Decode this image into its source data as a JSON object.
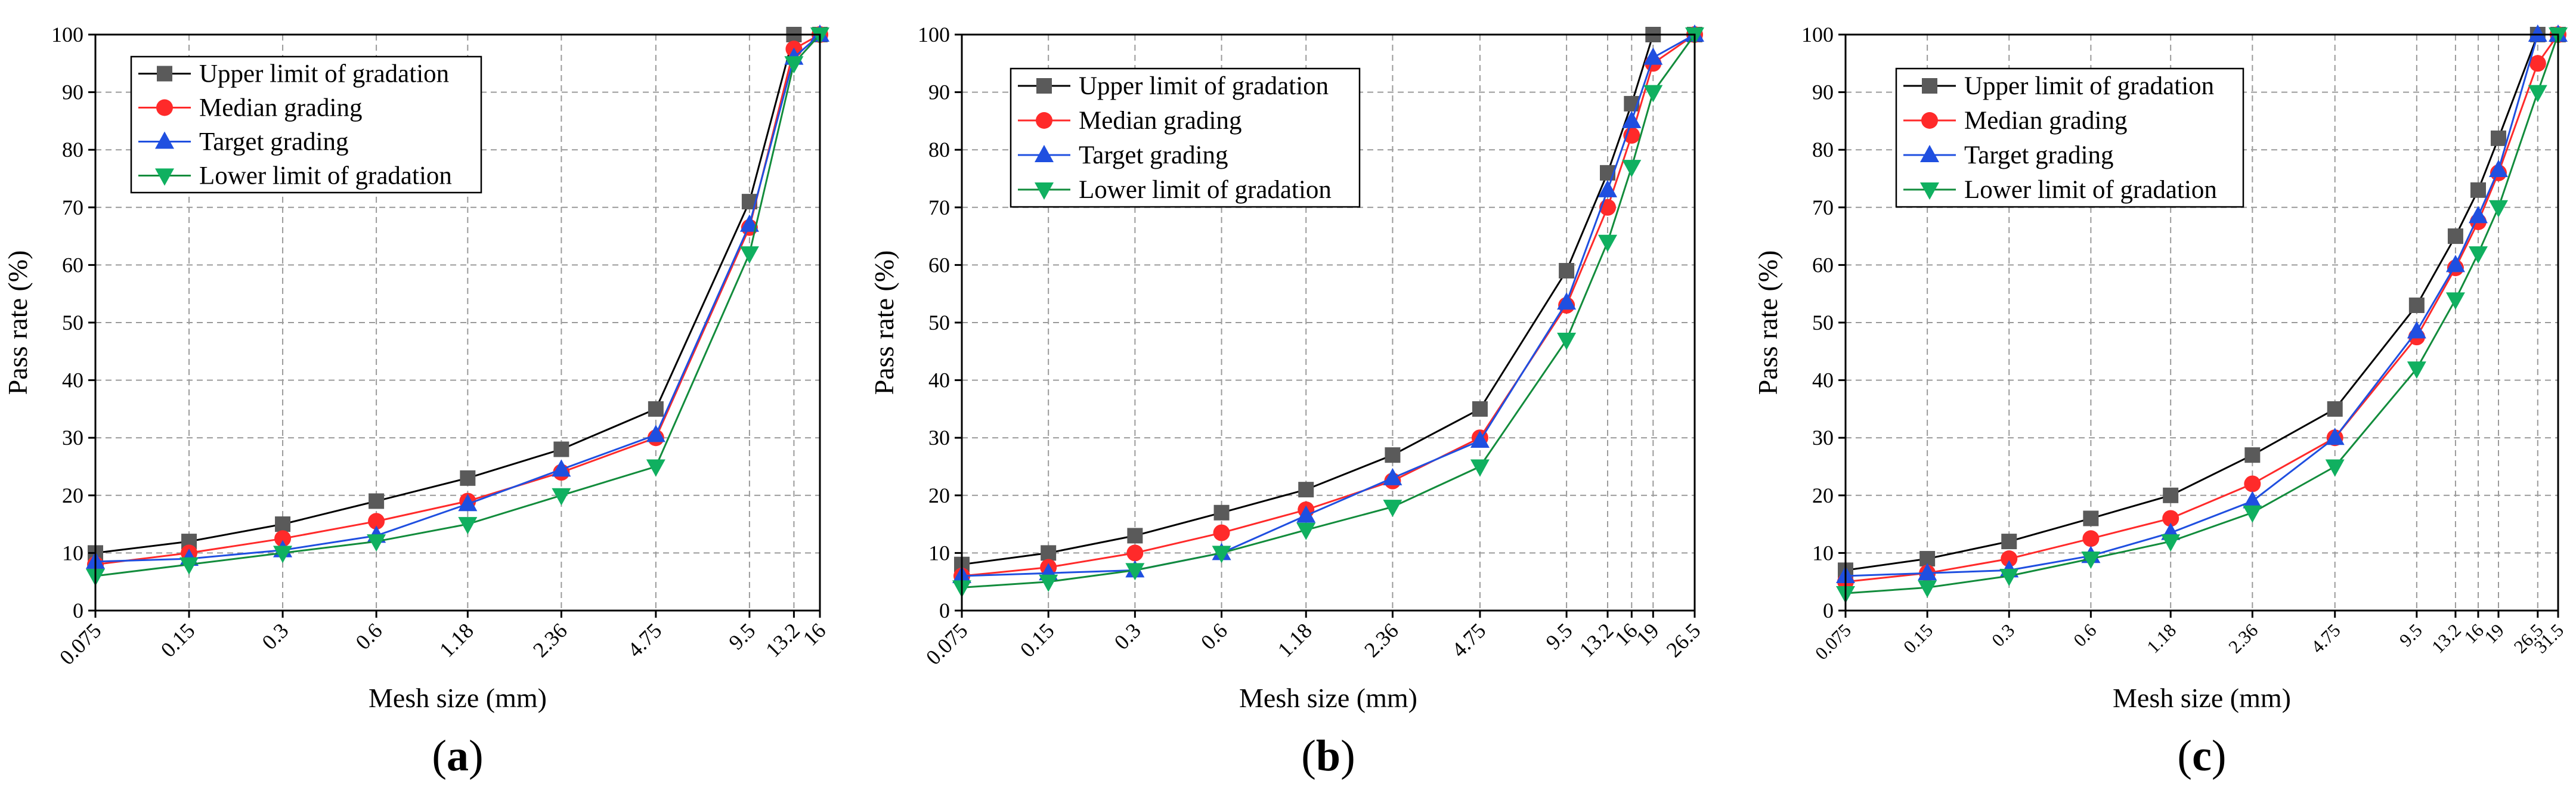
{
  "figure": {
    "panels": [
      {
        "label_open": "(",
        "label_letter": "a",
        "label_close": ")"
      },
      {
        "label_open": "(",
        "label_letter": "b",
        "label_close": ")"
      },
      {
        "label_open": "(",
        "label_letter": "c",
        "label_close": ")"
      }
    ]
  },
  "colors": {
    "upper": "#5a5a5a",
    "median": "#ff2a2a",
    "target": "#1f4fe0",
    "lower": "#10b060",
    "upper_line": "#000000",
    "median_line": "#ff2a2a",
    "target_line": "#1f4fe0",
    "lower_line": "#128c3c"
  },
  "chart_data": [
    {
      "type": "line",
      "panel": "a",
      "xlabel": "Mesh size (mm)",
      "ylabel": "Pass rate (%)",
      "ylim": [
        0,
        100
      ],
      "yticks": [
        "0",
        "10",
        "20",
        "30",
        "40",
        "50",
        "60",
        "70",
        "80",
        "90",
        "100"
      ],
      "x_scale": "log",
      "categories": [
        "0.075",
        "0.15",
        "0.3",
        "0.6",
        "1.18",
        "2.36",
        "4.75",
        "9.5",
        "13.2",
        "16"
      ],
      "series": [
        {
          "name": "Upper limit of gradation",
          "key": "upper",
          "marker": "square",
          "values": [
            10,
            12,
            15,
            19,
            23,
            28,
            35,
            71,
            100,
            100
          ]
        },
        {
          "name": "Median grading",
          "key": "median",
          "marker": "circle",
          "values": [
            8,
            10,
            12.5,
            15.5,
            19,
            24,
            30,
            66.5,
            97.5,
            100
          ]
        },
        {
          "name": "Target grading",
          "key": "target",
          "marker": "triangle-up",
          "values": [
            8.5,
            9,
            10.5,
            13,
            18.5,
            24.5,
            30.5,
            67,
            96,
            100
          ]
        },
        {
          "name": "Lower limit of gradation",
          "key": "lower",
          "marker": "triangle-down",
          "values": [
            6,
            8,
            10,
            12,
            15,
            20,
            25,
            62,
            95,
            100
          ]
        }
      ],
      "legend": "top-left",
      "grid": true
    },
    {
      "type": "line",
      "panel": "b",
      "xlabel": "Mesh size (mm)",
      "ylabel": "Pass rate (%)",
      "ylim": [
        0,
        100
      ],
      "yticks": [
        "0",
        "10",
        "20",
        "30",
        "40",
        "50",
        "60",
        "70",
        "80",
        "90",
        "100"
      ],
      "x_scale": "log",
      "categories": [
        "0.075",
        "0.15",
        "0.3",
        "0.6",
        "1.18",
        "2.36",
        "4.75",
        "9.5",
        "13.2",
        "16",
        "19",
        "26.5"
      ],
      "series": [
        {
          "name": "Upper limit of gradation",
          "key": "upper",
          "marker": "square",
          "values": [
            8,
            10,
            13,
            17,
            21,
            27,
            35,
            59,
            76,
            88,
            100,
            100
          ]
        },
        {
          "name": "Median grading",
          "key": "median",
          "marker": "circle",
          "values": [
            6,
            7.5,
            10,
            13.5,
            17.5,
            22.5,
            30,
            53,
            70,
            82.5,
            95,
            100
          ]
        },
        {
          "name": "Target grading",
          "key": "target",
          "marker": "triangle-up",
          "values": [
            6,
            6.5,
            7,
            10,
            16.5,
            23,
            29.5,
            53.5,
            73,
            85,
            96,
            100
          ]
        },
        {
          "name": "Lower limit of gradation",
          "key": "lower",
          "marker": "triangle-down",
          "values": [
            4,
            5,
            7,
            10,
            14,
            18,
            25,
            47,
            64,
            77,
            90,
            100
          ]
        }
      ],
      "legend": "top-left",
      "grid": true
    },
    {
      "type": "line",
      "panel": "c",
      "xlabel": "Mesh size (mm)",
      "ylabel": "Pass rate (%)",
      "ylim": [
        0,
        100
      ],
      "yticks": [
        "0",
        "10",
        "20",
        "30",
        "40",
        "50",
        "60",
        "70",
        "80",
        "90",
        "100"
      ],
      "x_scale": "log",
      "categories": [
        "0.075",
        "0.15",
        "0.3",
        "0.6",
        "1.18",
        "2.36",
        "4.75",
        "9.5",
        "13.2",
        "16",
        "19",
        "26.5",
        "31.5"
      ],
      "series": [
        {
          "name": "Upper limit of gradation",
          "key": "upper",
          "marker": "square",
          "values": [
            7,
            9,
            12,
            16,
            20,
            27,
            35,
            53,
            65,
            73,
            82,
            100,
            100
          ]
        },
        {
          "name": "Median grading",
          "key": "median",
          "marker": "circle",
          "values": [
            5,
            6.5,
            9,
            12.5,
            16,
            22,
            30,
            47.5,
            59.5,
            67.5,
            76,
            95,
            100
          ]
        },
        {
          "name": "Target grading",
          "key": "target",
          "marker": "triangle-up",
          "values": [
            6,
            6.5,
            7,
            9.5,
            13.5,
            19,
            30,
            48.5,
            60,
            68.5,
            76.5,
            100,
            100
          ]
        },
        {
          "name": "Lower limit of gradation",
          "key": "lower",
          "marker": "triangle-down",
          "values": [
            3,
            4,
            6,
            9,
            12,
            17,
            25,
            42,
            54,
            62,
            70,
            90,
            100
          ]
        }
      ],
      "legend": "top-left",
      "grid": true
    }
  ]
}
